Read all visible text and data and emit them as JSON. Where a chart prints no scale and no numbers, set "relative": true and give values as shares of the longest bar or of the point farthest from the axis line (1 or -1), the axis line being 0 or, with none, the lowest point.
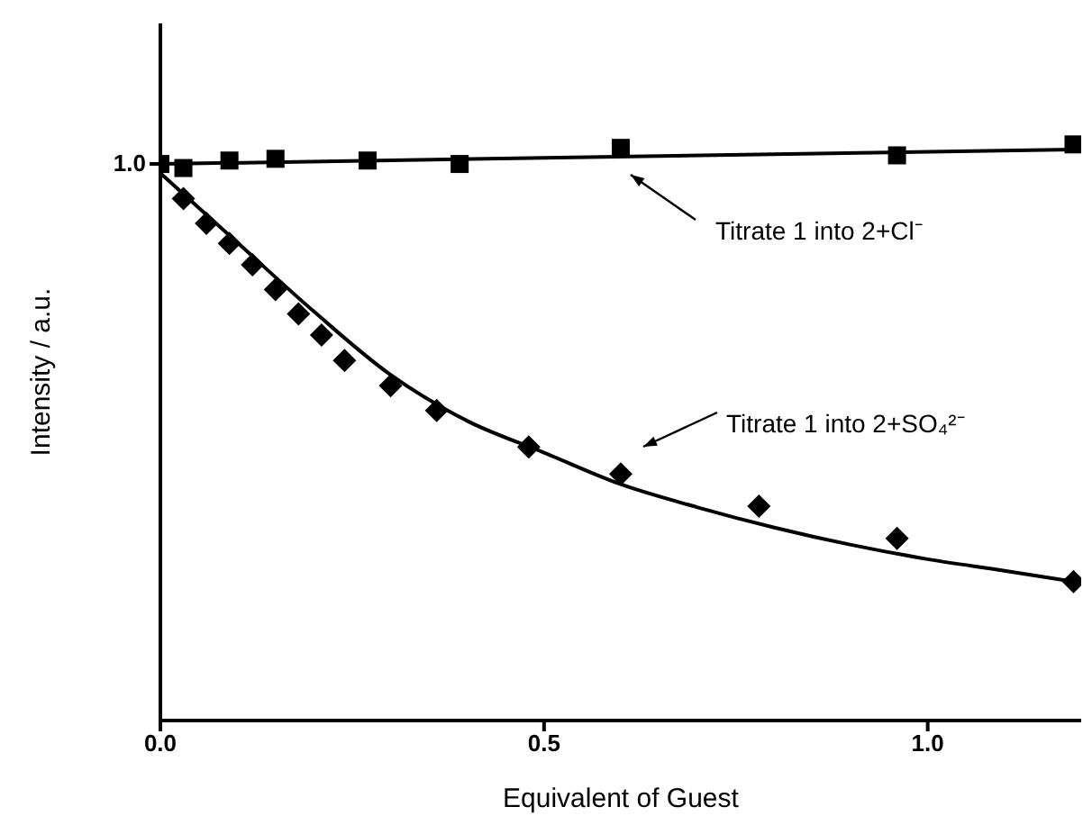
{
  "chart_data": {
    "type": "scatter",
    "relative": true,
    "xlabel": "Equivalent of Guest",
    "ylabel": "Intensity / a.u.",
    "xlim": [
      0,
      1.2
    ],
    "xticks": [
      {
        "value": 0,
        "label": "0.0"
      },
      0.5,
      {
        "value": 1,
        "label": "1.0"
      }
    ],
    "series": [
      {
        "marker": "square",
        "color": "#000000",
        "x": [
          0,
          0.03,
          0.09,
          0.15,
          0.27,
          0.39,
          0.6,
          0.96,
          1.19
        ],
        "values": [
          0.966,
          0.959,
          0.972,
          0.975,
          0.972,
          0.966,
          0.994,
          0.981,
          1
        ]
      },
      {
        "marker": "diamond",
        "color": "#000000",
        "x": [
          0.03,
          0.06,
          0.09,
          0.12,
          0.15,
          0.18,
          0.21,
          0.24,
          0.3,
          0.36,
          0.48,
          0.6,
          0.78,
          0.96,
          1.19
        ],
        "values": [
          0.906,
          0.863,
          0.828,
          0.791,
          0.748,
          0.706,
          0.669,
          0.625,
          0.581,
          0.538,
          0.475,
          0.428,
          0.372,
          0.316,
          0.241
        ]
      },
      {
        "type": "line",
        "marker": "none",
        "color": "#000000",
        "x": [
          0,
          1.19
        ],
        "values": [
          0.966,
          0.991
        ]
      },
      {
        "type": "line",
        "marker": "none",
        "color": "#000000",
        "x": [
          0,
          0.1,
          0.2,
          0.3,
          0.4,
          0.5,
          0.6,
          0.7,
          0.8,
          0.9,
          1.0,
          1.1,
          1.19
        ],
        "values": [
          0.95,
          0.83,
          0.71,
          0.6,
          0.52,
          0.465,
          0.41,
          0.37,
          0.335,
          0.305,
          0.28,
          0.26,
          0.241
        ]
      }
    ],
    "annotations": [
      "1.0",
      "Titrate 1 into 2+Cl⁻",
      "Titrate 1 into 2+SO₄²⁻"
    ]
  }
}
